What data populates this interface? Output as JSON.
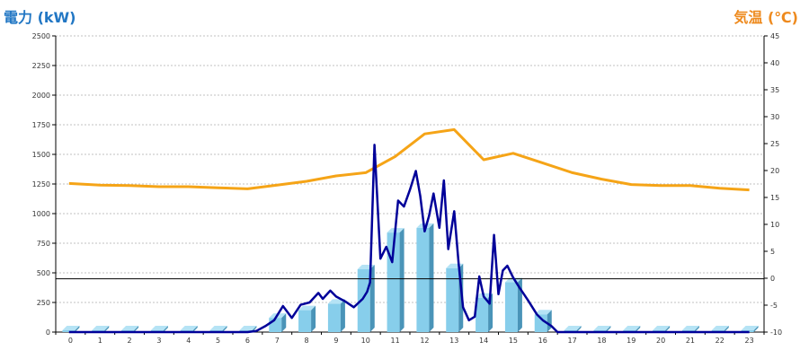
{
  "chart_data": {
    "type": "bar",
    "left_axis_title": "電力 (kW)",
    "right_axis_title": "気温 (℃)",
    "categories": [
      "0",
      "1",
      "2",
      "3",
      "4",
      "5",
      "6",
      "7",
      "8",
      "9",
      "10",
      "11",
      "12",
      "13",
      "14",
      "15",
      "16",
      "17",
      "18",
      "19",
      "20",
      "21",
      "22",
      "23"
    ],
    "left_axis": {
      "min": 0,
      "max": 2500,
      "ticks": [
        0,
        250,
        500,
        750,
        1000,
        1250,
        1500,
        1750,
        2000,
        2250,
        2500
      ]
    },
    "right_axis": {
      "min": -10,
      "max": 45,
      "ticks": [
        -10,
        -5,
        0,
        5,
        10,
        15,
        20,
        25,
        30,
        35,
        40,
        45
      ]
    },
    "grid": true,
    "bars": {
      "axis": "left",
      "values": [
        15,
        15,
        15,
        15,
        15,
        15,
        15,
        120,
        185,
        240,
        530,
        840,
        880,
        540,
        290,
        420,
        150,
        15,
        15,
        15,
        15,
        15,
        15,
        15
      ],
      "color": "#87ceeb",
      "side_color": "#4a94b8"
    },
    "temperature_line": {
      "axis": "right",
      "color": "#f5a417",
      "x": [
        -0.05,
        1,
        2,
        3,
        4,
        5,
        6,
        7,
        8,
        9,
        10,
        11,
        12,
        13,
        14,
        15,
        16,
        17,
        18,
        19,
        20,
        21,
        22,
        23
      ],
      "values": [
        17.6,
        17.3,
        17.2,
        17.0,
        17.0,
        16.8,
        16.6,
        17.3,
        18.0,
        19.0,
        19.6,
        22.6,
        26.8,
        27.6,
        22.0,
        23.2,
        21.4,
        19.6,
        18.4,
        17.4,
        17.2,
        17.2,
        16.7,
        16.4
      ]
    },
    "power_line": {
      "axis": "left",
      "color": "#000099",
      "x": [
        -0.05,
        6,
        6.3,
        6.6,
        6.9,
        7.2,
        7.5,
        7.8,
        8.1,
        8.4,
        8.55,
        8.8,
        9,
        9.3,
        9.6,
        9.9,
        10.05,
        10.15,
        10.3,
        10.5,
        10.7,
        10.9,
        11.1,
        11.3,
        11.5,
        11.7,
        11.85,
        12,
        12.15,
        12.3,
        12.5,
        12.65,
        12.8,
        13,
        13.15,
        13.3,
        13.5,
        13.7,
        13.85,
        14,
        14.2,
        14.35,
        14.5,
        14.65,
        14.8,
        15,
        15.2,
        15.5,
        15.8,
        16,
        16.3,
        16.5,
        16.65,
        23
      ],
      "values": [
        0,
        0,
        10,
        50,
        100,
        220,
        120,
        230,
        250,
        330,
        280,
        350,
        300,
        260,
        210,
        280,
        340,
        420,
        1580,
        620,
        720,
        590,
        1110,
        1060,
        1200,
        1360,
        1150,
        850,
        980,
        1170,
        880,
        1280,
        700,
        1020,
        580,
        210,
        100,
        130,
        470,
        300,
        240,
        820,
        320,
        520,
        560,
        460,
        380,
        270,
        150,
        100,
        50,
        0,
        0,
        0
      ]
    },
    "reference_line": {
      "axis": "left",
      "value": 450,
      "color": "#000000"
    }
  }
}
